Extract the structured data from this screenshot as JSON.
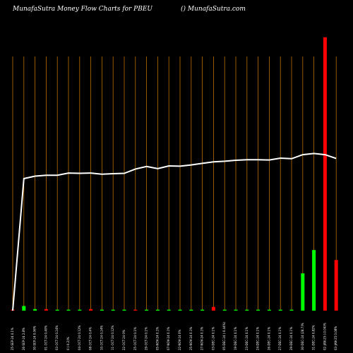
{
  "header": {
    "left": "MunafaSutra  Money Flow  Charts for PBEU",
    "right": "() MunafaSutra.com"
  },
  "colors": {
    "background": "#000000",
    "grid": "#b86e00",
    "line": "#ffffff",
    "bar_up": "#00ff00",
    "bar_down": "#ff0000"
  },
  "chart_data": {
    "type": "bar",
    "title": "MunafaSutra  Money Flow  Charts for PBEU",
    "categories": [
      "25-SEP-24 0.1%",
      "26-SEP-24 2.8%",
      "30-SEP-24 0.06%",
      "01-OCT-24 0.40%",
      "03-OCT-24 0.24%",
      "0 (-0.2)%",
      "04-OCT-24 0.12%",
      "08-OCT-24 0.4%",
      "10-OCT-24 0.24%",
      "11-OCT-24 0.12%",
      "22-OCT-24 0%",
      "25-OCT-24 0.1%",
      "29-OCT-24 0.1%",
      "05-NOV-24 0.1%",
      "07-NOV-24 0.1%",
      "22-NOV-24 0%",
      "25-NOV-24 0.1%",
      "27-NOV-24 0.1%",
      "03-DEC-24 0.1%",
      "05-DEC-24 (-0.44%)",
      "19-DEC-24 0.1%",
      "23-DEC-24 0.1%",
      "24-DEC-24 0.1%",
      "26-DEC-24 0.1%",
      "27-DEC-24 0.1%",
      "29-DEC-24 0.1%",
      "30-DEC-24 (28.7)%",
      "31-DEC-24 0.82%",
      "02-JAN-25 (-0.04)%",
      "03-JAN-25 0.08%"
    ],
    "series": [
      {
        "values": [
          0.3,
          1.5,
          0.5,
          0.5,
          0.3,
          0.3,
          0.3,
          0.5,
          0.3,
          0.3,
          0.3,
          0.3,
          0.3,
          0.3,
          0.3,
          0.3,
          0.3,
          0.3,
          1.2,
          0.3,
          0.3,
          0.3,
          0.3,
          0.3,
          0.3,
          0.3,
          12,
          19.5,
          88,
          16.3
        ],
        "colors": [
          "red",
          "green",
          "green",
          "red",
          "green",
          "green",
          "green",
          "red",
          "green",
          "green",
          "green",
          "red",
          "green",
          "green",
          "green",
          "green",
          "green",
          "green",
          "red",
          "green",
          "green",
          "green",
          "green",
          "green",
          "green",
          "green",
          "green",
          "green",
          "red",
          "red"
        ]
      },
      {
        "values": [
          0,
          42.5,
          43.3,
          43.6,
          43.6,
          44.3,
          44.2,
          44.3,
          43.9,
          44.1,
          44.2,
          45.6,
          46.4,
          45.7,
          46.6,
          46.5,
          46.9,
          47.4,
          47.9,
          48.1,
          48.4,
          48.6,
          48.6,
          48.5,
          49.1,
          48.9,
          50.2,
          50.6,
          50.2,
          49.0
        ]
      }
    ],
    "ylim": [
      0,
      100
    ]
  }
}
